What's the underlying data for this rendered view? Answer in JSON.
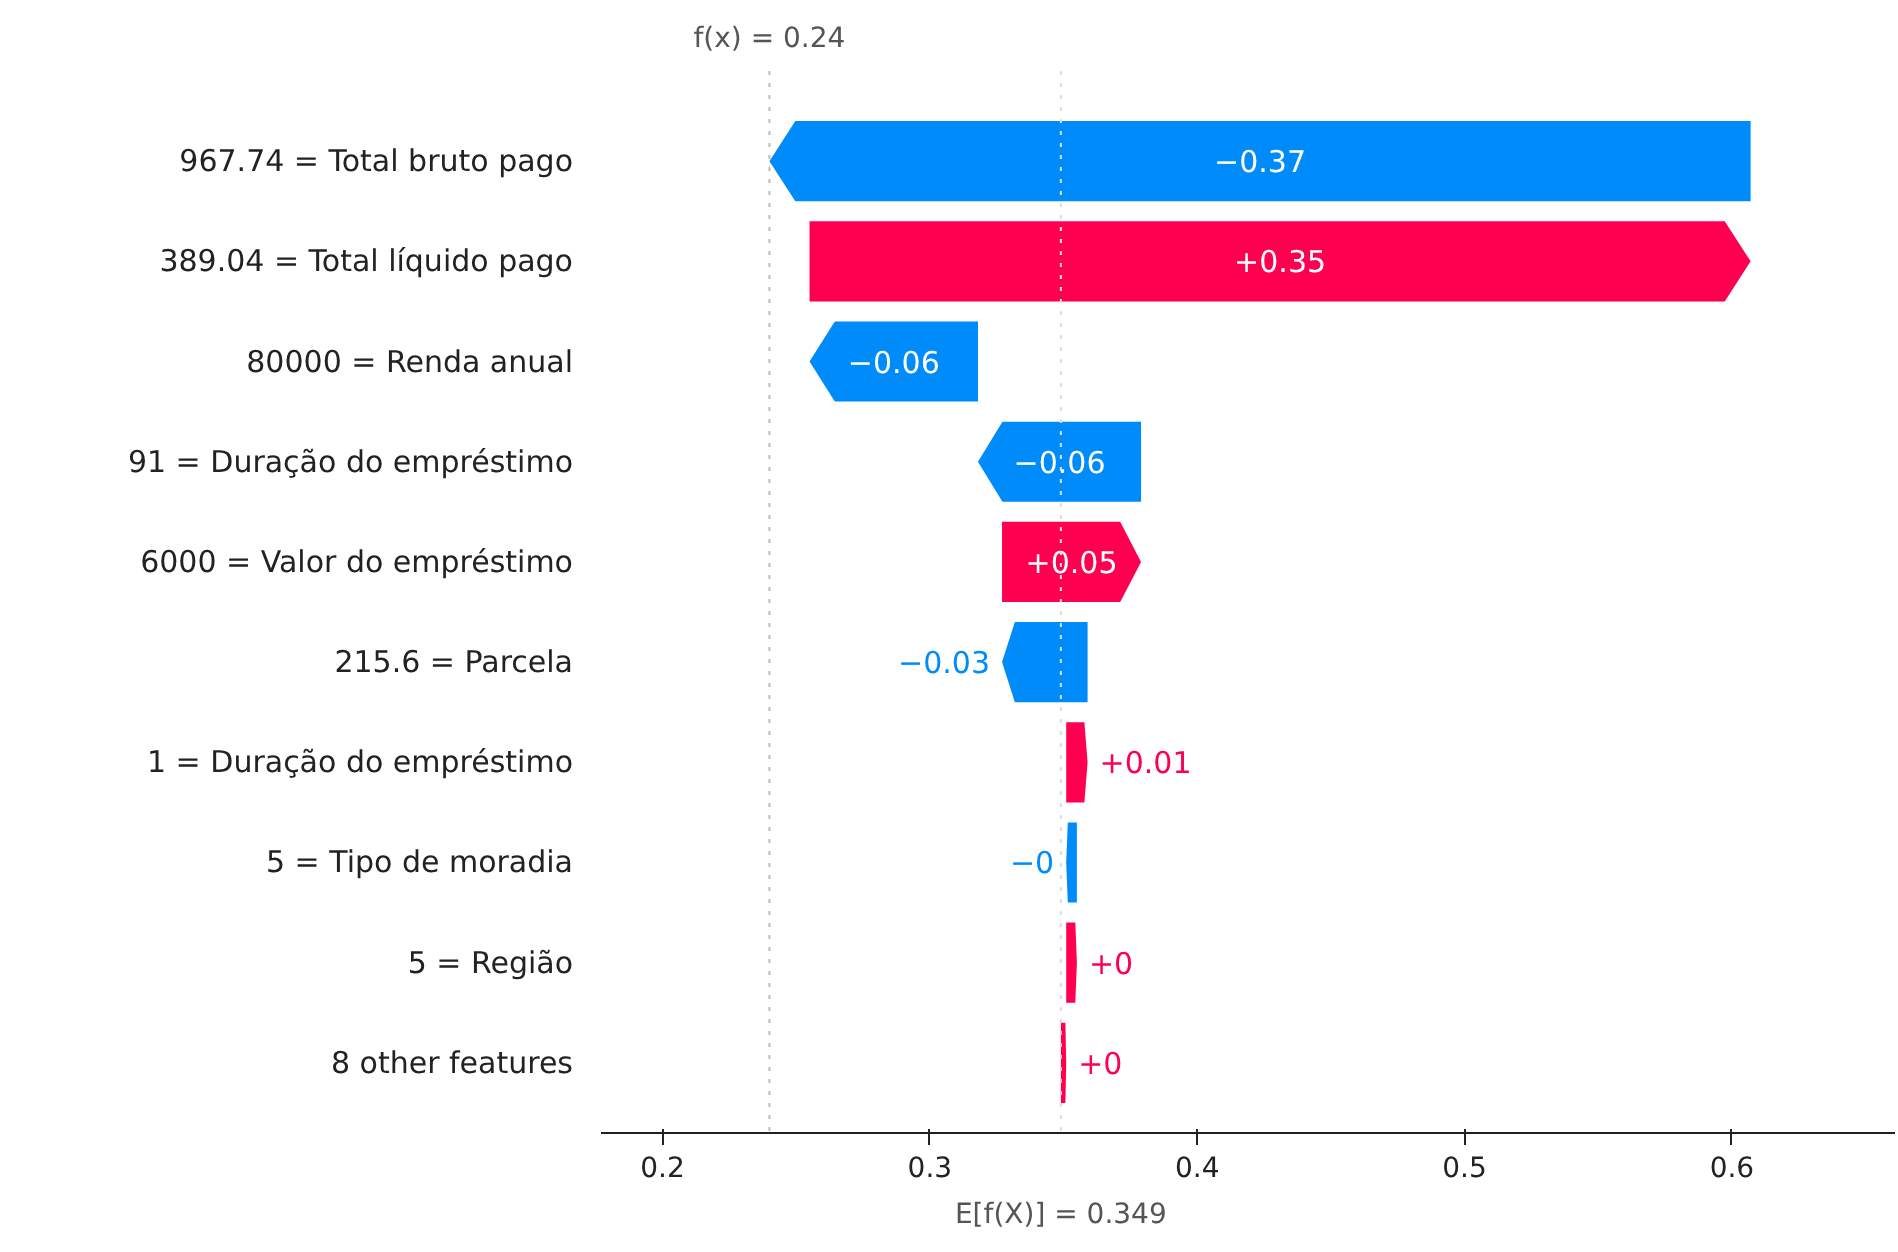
{
  "chart_data": {
    "type": "bar",
    "orientation": "horizontal",
    "categories": [
      "967.74 = Total bruto pago",
      "389.04 = Total líquido pago",
      "80000 = Renda anual",
      "91 = Duração do empréstimo",
      "6000 = Valor do empréstimo",
      "215.6 = Parcela",
      "1 = Duração do empréstimo",
      "5 = Tipo de moradia",
      "5 = Região",
      "8 other features"
    ],
    "values": [
      -0.367,
      0.352,
      -0.063,
      -0.061,
      0.052,
      -0.032,
      0.008,
      -0.004,
      0.004,
      0.002
    ],
    "base": [
      0.607,
      0.255,
      0.318,
      0.379,
      0.327,
      0.359,
      0.351,
      0.355,
      0.351,
      0.349
    ],
    "colors": [
      "#008bfb",
      "#ff0051",
      "#008bfb",
      "#008bfb",
      "#ff0051",
      "#008bfb",
      "#ff0051",
      "#008bfb",
      "#ff0051",
      "#ff0051"
    ],
    "value_labels": [
      "−0.37",
      "+0.35",
      "−0.06",
      "−0.06",
      "+0.05",
      "−0.03",
      "+0.01",
      "−0",
      "+0",
      "+0"
    ],
    "xlim": [
      0.177,
      0.661
    ],
    "xticks": [
      0.2,
      0.3,
      0.4,
      0.5,
      0.6
    ],
    "ref_lines": [
      {
        "axis": "x",
        "value": 0.24,
        "label": "f(x) = 0.24",
        "color": "#bbbbbb",
        "line_style": "dotted"
      },
      {
        "axis": "x",
        "value": 0.349,
        "label": "E[f(X)] = 0.349",
        "color": "#dddddd",
        "line_style": "dotted"
      }
    ],
    "grid": false
  }
}
